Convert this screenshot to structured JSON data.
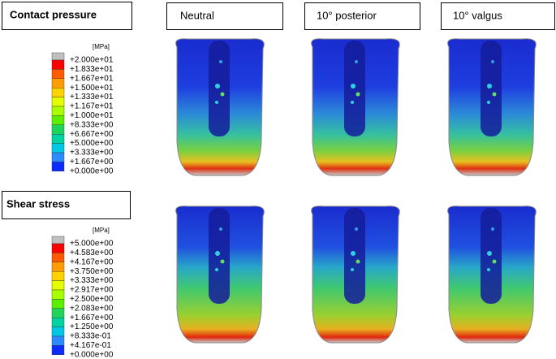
{
  "headers": {
    "row1_title": "Contact pressure",
    "row2_title": "Shear stress",
    "columns": [
      "Neutral",
      "10° posterior",
      "10° valgus"
    ]
  },
  "legends": [
    {
      "unit": "[MPa]",
      "labels": [
        "+2.000e+01",
        "+1.833e+01",
        "+1.667e+01",
        "+1.500e+01",
        "+1.333e+01",
        "+1.167e+01",
        "+1.000e+01",
        "+8.333e+00",
        "+6.667e+00",
        "+5.000e+00",
        "+3.333e+00",
        "+1.667e+00",
        "+0.000e+00"
      ],
      "colors": [
        "#c0c0c0",
        "#ff0000",
        "#ff5a00",
        "#ff9c00",
        "#ffd200",
        "#e4ff00",
        "#a8ff00",
        "#5cf000",
        "#1ed45a",
        "#00d2a0",
        "#00c8e6",
        "#2a8cff",
        "#0a2cff"
      ]
    },
    {
      "unit": "[MPa]",
      "labels": [
        "+5.000e+00",
        "+4.583e+00",
        "+4.167e+00",
        "+3.750e+00",
        "+3.333e+00",
        "+2.917e+00",
        "+2.500e+00",
        "+2.083e+00",
        "+1.667e+00",
        "+1.250e+00",
        "+8.333e-01",
        "+4.167e-01",
        "+0.000e+00"
      ],
      "colors": [
        "#c0c0c0",
        "#ff0000",
        "#ff5a00",
        "#ff9c00",
        "#ffd200",
        "#e4ff00",
        "#a8ff00",
        "#5cf000",
        "#1ed45a",
        "#00d2a0",
        "#00c8e6",
        "#2a8cff",
        "#0a2cff"
      ]
    }
  ]
}
